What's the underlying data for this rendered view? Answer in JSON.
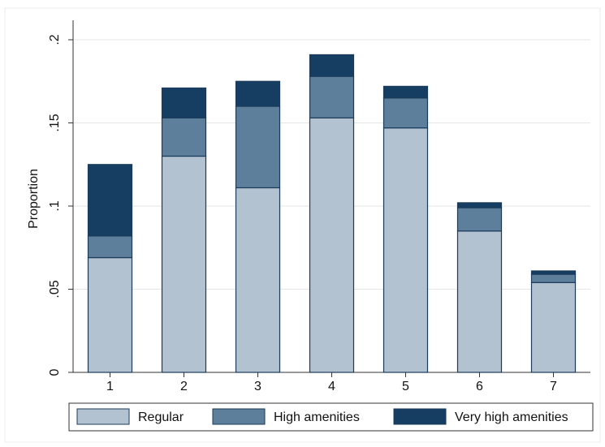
{
  "chart_data": {
    "type": "stacked_bar",
    "y_label": "Proportion",
    "categories": [
      "1",
      "2",
      "3",
      "4",
      "5",
      "6",
      "7"
    ],
    "series": [
      {
        "name": "Regular",
        "color": "#b3c2d1",
        "values": [
          0.069,
          0.13,
          0.111,
          0.153,
          0.147,
          0.085,
          0.054
        ]
      },
      {
        "name": "High amenities",
        "color": "#5d7f9b",
        "values": [
          0.013,
          0.023,
          0.049,
          0.025,
          0.018,
          0.014,
          0.005
        ]
      },
      {
        "name": "Very high amenities",
        "color": "#163e62",
        "values": [
          0.043,
          0.018,
          0.015,
          0.013,
          0.007,
          0.003,
          0.002
        ]
      }
    ],
    "ylim": [
      0,
      0.2
    ],
    "yticks": [
      0,
      {
        "value": 0.05,
        "label": ".05"
      },
      {
        "value": 0.1,
        "label": ".1"
      },
      {
        "value": 0.15,
        "label": ".15"
      },
      {
        "value": 0.2,
        "label": ".2"
      }
    ],
    "grid": true,
    "legend_position": "bottom"
  }
}
